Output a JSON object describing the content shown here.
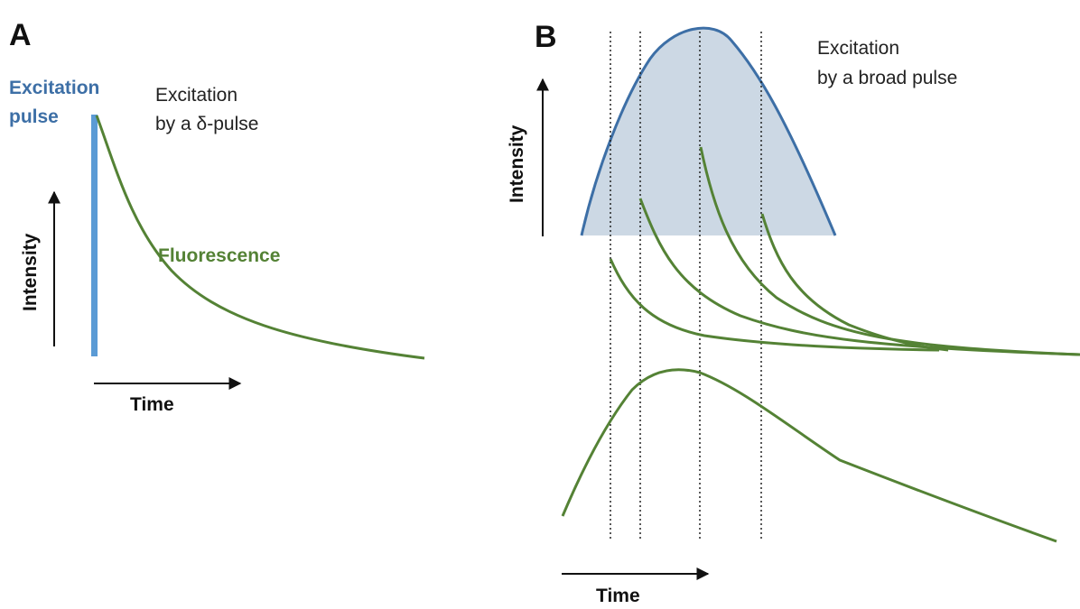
{
  "panel_a": {
    "letter": "A",
    "pulse_label_line1": "Excitation",
    "pulse_label_line2": "pulse",
    "excitation_line1": "Excitation",
    "excitation_line2": "by a δ-pulse",
    "fluorescence_label": "Fluorescence",
    "intensity_label": "Intensity",
    "time_label": "Time"
  },
  "panel_b": {
    "letter": "B",
    "excitation_line1": "Excitation",
    "excitation_line2": "by a broad pulse",
    "intensity_label": "Intensity",
    "time_label": "Time"
  },
  "colors": {
    "pulse_blue": "#5b9bd5",
    "pulse_outline": "#3d6fa6",
    "pulse_fill": "#ccd8e4",
    "fluorescence_green": "#548235",
    "axis": "#111111",
    "sample_line": "#222222"
  }
}
